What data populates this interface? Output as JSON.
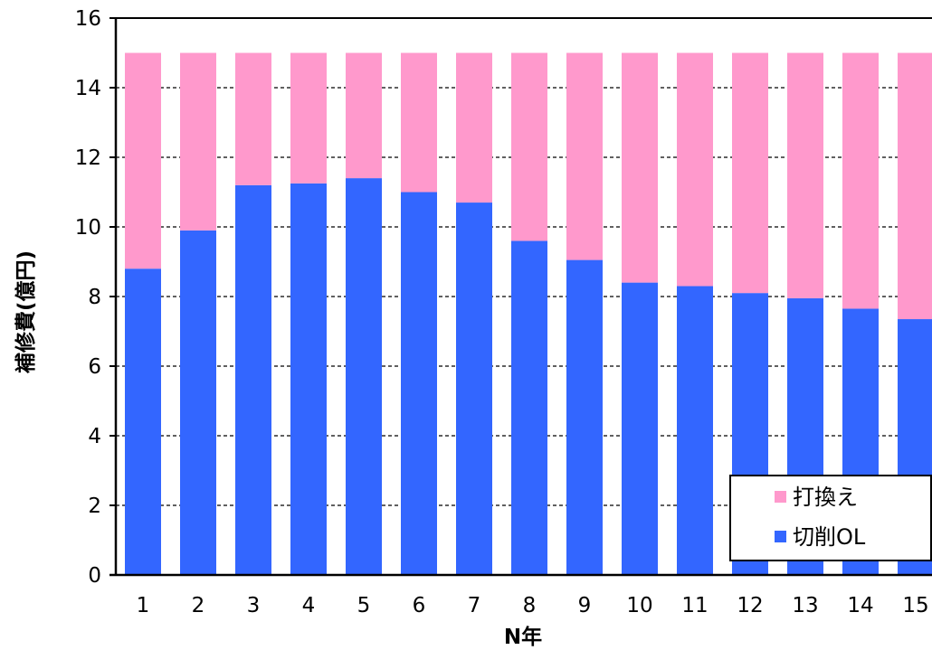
{
  "chart_data": {
    "type": "bar",
    "stacked": true,
    "categories": [
      "1",
      "2",
      "3",
      "4",
      "5",
      "6",
      "7",
      "8",
      "9",
      "10",
      "11",
      "12",
      "13",
      "14",
      "15"
    ],
    "series": [
      {
        "name": "切削OL",
        "color": "#3366ff",
        "values": [
          8.8,
          9.9,
          11.2,
          11.25,
          11.4,
          11.0,
          10.7,
          9.6,
          9.05,
          8.4,
          8.3,
          8.1,
          7.95,
          7.65,
          7.35
        ]
      },
      {
        "name": "打換え",
        "color": "#ff99cc",
        "values": [
          6.2,
          5.1,
          3.8,
          3.75,
          3.6,
          4.0,
          4.3,
          5.4,
          5.95,
          6.6,
          6.7,
          6.9,
          7.05,
          7.35,
          7.65
        ]
      }
    ],
    "xlabel": "N年",
    "ylabel": "補修費(億円)",
    "ylim": [
      0,
      16
    ],
    "yticks": [
      0,
      2,
      4,
      6,
      8,
      10,
      12,
      14,
      16
    ],
    "grid": "horizontal-dashed",
    "legend_position": "bottom-right"
  }
}
